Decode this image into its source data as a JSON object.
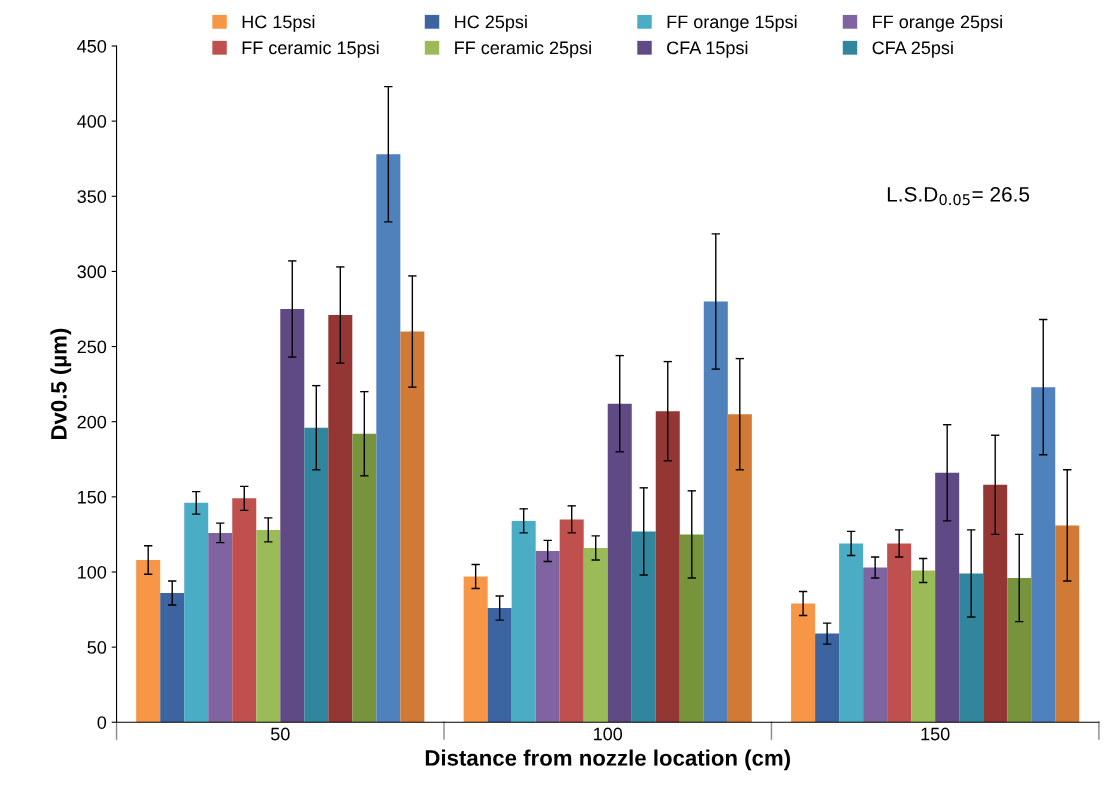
{
  "chart_data": {
    "type": "bar",
    "xlabel": "Distance from nozzle location (cm)",
    "ylabel": "Dv0.5 (µm)",
    "categories": [
      "50",
      "100",
      "150"
    ],
    "ylim": [
      0,
      450
    ],
    "yticks": [
      0,
      50,
      100,
      150,
      200,
      250,
      300,
      350,
      400,
      450
    ],
    "grid": false,
    "legend": "top",
    "annotations": [
      "L.S.D$_{0.05}$= 26.5"
    ],
    "series": [
      {
        "name": "HC 15psi",
        "color": "#f79646",
        "values": [
          108,
          97,
          79
        ],
        "errors": [
          9.5,
          8,
          8
        ]
      },
      {
        "name": "HC 25psi",
        "color": "#3b64a0",
        "values": [
          86,
          76,
          59
        ],
        "errors": [
          8,
          8,
          7
        ]
      },
      {
        "name": "FF orange 15psi",
        "color": "#4bacc6",
        "values": [
          146,
          134,
          119
        ],
        "errors": [
          7.5,
          8,
          8
        ]
      },
      {
        "name": "FF orange 25psi",
        "color": "#8064a2",
        "values": [
          126,
          114,
          103
        ],
        "errors": [
          6.5,
          7,
          7
        ]
      },
      {
        "name": "FF ceramic 15psi",
        "color": "#c0504d",
        "values": [
          149,
          135,
          119
        ],
        "errors": [
          8,
          9,
          9
        ]
      },
      {
        "name": "FF ceramic 25psi",
        "color": "#9bbb59",
        "values": [
          128,
          116,
          101
        ],
        "errors": [
          8,
          8,
          8
        ]
      },
      {
        "name": "CFA 15psi",
        "color": "#5f4a85",
        "values": [
          275,
          212,
          166
        ],
        "errors": [
          32,
          32,
          32
        ]
      },
      {
        "name": "CFA 25psi",
        "color": "#31859c",
        "values": [
          196,
          127,
          99
        ],
        "errors": [
          28,
          29,
          29
        ]
      },
      {
        "color": "#943634",
        "values": [
          271,
          207,
          158
        ],
        "errors": [
          32,
          33,
          33
        ]
      },
      {
        "color": "#77933c",
        "values": [
          192,
          125,
          96
        ],
        "errors": [
          28,
          29,
          29
        ]
      },
      {
        "color": "#4f81bd",
        "values": [
          378,
          280,
          223
        ],
        "errors": [
          45,
          45,
          45
        ]
      },
      {
        "color": "#d07a36",
        "values": [
          260,
          205,
          131
        ],
        "errors": [
          37,
          37,
          37
        ]
      }
    ]
  }
}
